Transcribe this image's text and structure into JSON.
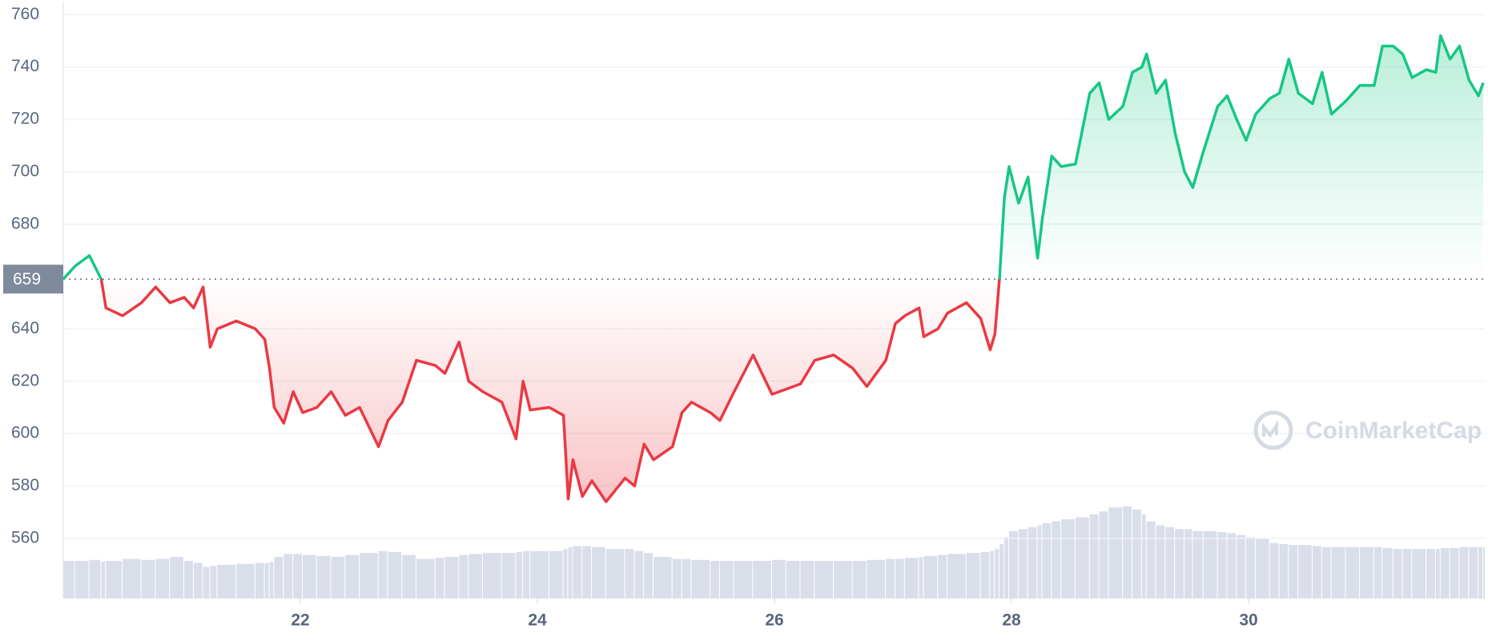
{
  "chart_data": {
    "type": "line",
    "watermark": "CoinMarketCap",
    "x": [
      20.0,
      20.1,
      20.22,
      20.32,
      20.36,
      20.5,
      20.66,
      20.78,
      20.9,
      21.02,
      21.1,
      21.18,
      21.24,
      21.3,
      21.46,
      21.62,
      21.7,
      21.74,
      21.78,
      21.86,
      21.94,
      22.02,
      22.14,
      22.26,
      22.38,
      22.5,
      22.66,
      22.74,
      22.86,
      22.98,
      23.14,
      23.22,
      23.34,
      23.42,
      23.54,
      23.7,
      23.82,
      23.88,
      23.94,
      24.1,
      24.22,
      24.26,
      24.3,
      24.38,
      24.46,
      24.58,
      24.74,
      24.82,
      24.9,
      24.98,
      25.14,
      25.22,
      25.3,
      25.46,
      25.54,
      25.66,
      25.82,
      25.98,
      26.1,
      26.22,
      26.34,
      26.5,
      26.66,
      26.78,
      26.94,
      27.02,
      27.1,
      27.22,
      27.26,
      27.38,
      27.46,
      27.62,
      27.74,
      27.82,
      27.86,
      27.9,
      27.94,
      27.98,
      28.06,
      28.14,
      28.22,
      28.26,
      28.34,
      28.42,
      28.54,
      28.66,
      28.74,
      28.82,
      28.94,
      29.02,
      29.1,
      29.14,
      29.22,
      29.3,
      29.38,
      29.46,
      29.53,
      29.62,
      29.74,
      29.82,
      29.9,
      29.98,
      30.06,
      30.18,
      30.26,
      30.34,
      30.42,
      30.54,
      30.62,
      30.7,
      30.82,
      30.94,
      31.06,
      31.13,
      31.22,
      31.3,
      31.38,
      31.5,
      31.58,
      31.62,
      31.7,
      31.78,
      31.86,
      31.94,
      31.98
    ],
    "values": [
      659,
      664,
      668,
      659,
      648,
      645,
      650,
      656,
      650,
      652,
      648,
      656,
      633,
      640,
      643,
      640,
      636,
      625,
      610,
      604,
      616,
      608,
      610,
      616,
      607,
      610,
      595,
      605,
      612,
      628,
      626,
      623,
      635,
      620,
      616,
      612,
      598,
      620,
      609,
      610,
      607,
      575,
      590,
      576,
      582,
      574,
      583,
      580,
      596,
      590,
      595,
      608,
      612,
      608,
      605,
      616,
      630,
      615,
      617,
      619,
      628,
      630,
      625,
      618,
      628,
      642,
      645,
      648,
      637,
      640,
      646,
      650,
      644,
      632,
      638,
      660,
      690,
      702,
      688,
      698,
      667,
      682,
      706,
      702,
      703,
      730,
      734,
      720,
      725,
      738,
      740,
      745,
      730,
      735,
      715,
      700,
      694,
      708,
      725,
      729,
      720,
      712,
      722,
      728,
      730,
      743,
      730,
      726,
      738,
      722,
      727,
      733,
      733,
      748,
      748,
      745,
      736,
      739,
      738,
      752,
      743,
      748,
      735,
      729,
      734
    ],
    "volume": [
      38,
      38,
      39,
      37,
      38,
      40,
      39,
      40,
      42,
      38,
      36,
      32,
      33,
      34,
      35,
      36,
      36,
      37,
      42,
      45,
      45,
      44,
      43,
      42,
      44,
      46,
      48,
      47,
      44,
      40,
      41,
      42,
      44,
      45,
      46,
      46,
      47,
      48,
      48,
      48,
      50,
      52,
      53,
      53,
      52,
      50,
      50,
      48,
      46,
      42,
      40,
      40,
      39,
      38,
      38,
      38,
      38,
      39,
      38,
      38,
      38,
      38,
      38,
      39,
      40,
      40,
      41,
      42,
      43,
      44,
      45,
      46,
      47,
      48,
      50,
      55,
      62,
      68,
      70,
      72,
      74,
      76,
      78,
      80,
      82,
      85,
      88,
      92,
      93,
      90,
      85,
      78,
      74,
      72,
      70,
      70,
      68,
      68,
      67,
      66,
      64,
      62,
      60,
      56,
      55,
      54,
      54,
      53,
      52,
      52,
      52,
      52,
      52,
      51,
      50,
      50,
      50,
      50,
      50,
      51,
      51,
      52,
      52,
      52,
      52
    ],
    "xlim": [
      20,
      32
    ],
    "ylim": [
      537,
      765
    ],
    "xticks": [
      22,
      24,
      26,
      28,
      30
    ],
    "yticks": [
      560,
      580,
      600,
      620,
      640,
      680,
      700,
      720,
      740,
      760
    ],
    "baseline": 659,
    "up_color": "#16c784",
    "down_color": "#ea3943",
    "volume_color": "#cfd6e4",
    "grid": true
  }
}
